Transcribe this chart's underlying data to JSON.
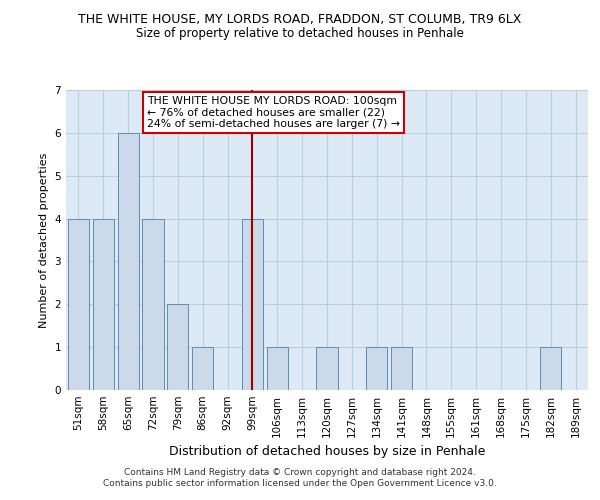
{
  "title": "THE WHITE HOUSE, MY LORDS ROAD, FRADDON, ST COLUMB, TR9 6LX",
  "subtitle": "Size of property relative to detached houses in Penhale",
  "xlabel": "Distribution of detached houses by size in Penhale",
  "ylabel": "Number of detached properties",
  "categories": [
    "51sqm",
    "58sqm",
    "65sqm",
    "72sqm",
    "79sqm",
    "86sqm",
    "92sqm",
    "99sqm",
    "106sqm",
    "113sqm",
    "120sqm",
    "127sqm",
    "134sqm",
    "141sqm",
    "148sqm",
    "155sqm",
    "161sqm",
    "168sqm",
    "175sqm",
    "182sqm",
    "189sqm"
  ],
  "values": [
    4,
    4,
    6,
    4,
    2,
    1,
    0,
    4,
    1,
    0,
    1,
    0,
    1,
    1,
    0,
    0,
    0,
    0,
    0,
    1,
    0
  ],
  "highlight_index": 7,
  "bar_color": "#ccd9e8",
  "bar_edge_color": "#5b8db8",
  "highlight_line_color": "#990000",
  "ylim": [
    0,
    7
  ],
  "yticks": [
    0,
    1,
    2,
    3,
    4,
    5,
    6,
    7
  ],
  "annotation_text": "THE WHITE HOUSE MY LORDS ROAD: 100sqm\n← 76% of detached houses are smaller (22)\n24% of semi-detached houses are larger (7) →",
  "annotation_box_color": "#ffffff",
  "annotation_box_edge": "#cc0000",
  "footer_text": "Contains HM Land Registry data © Crown copyright and database right 2024.\nContains public sector information licensed under the Open Government Licence v3.0.",
  "grid_color": "#b8cfe0",
  "background_color": "#ddeaf5",
  "title_fontsize": 9,
  "subtitle_fontsize": 8.5,
  "ylabel_fontsize": 8,
  "xlabel_fontsize": 9,
  "tick_fontsize": 7.5,
  "footer_fontsize": 6.5,
  "ann_fontsize": 7.8
}
